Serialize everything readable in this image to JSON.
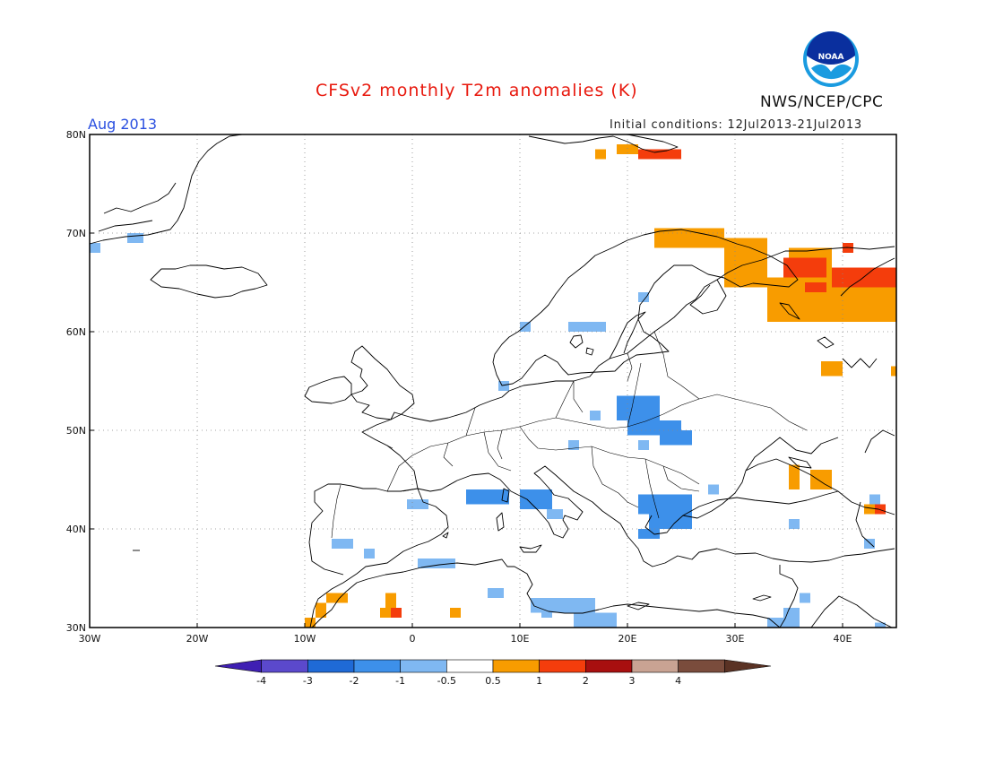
{
  "header": {
    "title": "CFSv2 monthly T2m anomalies (K)",
    "org": "NWS/NCEP/CPC",
    "month": "Aug 2013",
    "initial_conditions": "Initial conditions: 12Jul2013-21Jul2013",
    "logo_text": "NOAA"
  },
  "map": {
    "lon_range": [
      -30,
      45
    ],
    "lat_range": [
      30,
      80
    ],
    "lon_ticks": [
      {
        "lon": -30,
        "label": "30W"
      },
      {
        "lon": -20,
        "label": "20W"
      },
      {
        "lon": -10,
        "label": "10W"
      },
      {
        "lon": 0,
        "label": "0"
      },
      {
        "lon": 10,
        "label": "10E"
      },
      {
        "lon": 20,
        "label": "20E"
      },
      {
        "lon": 30,
        "label": "30E"
      },
      {
        "lon": 40,
        "label": "40E"
      }
    ],
    "lat_ticks": [
      {
        "lat": 30,
        "label": "30N"
      },
      {
        "lat": 40,
        "label": "40N"
      },
      {
        "lat": 50,
        "label": "50N"
      },
      {
        "lat": 60,
        "label": "60N"
      },
      {
        "lat": 70,
        "label": "70N"
      },
      {
        "lat": 80,
        "label": "80N"
      }
    ],
    "grid": "dotted",
    "anomaly_cells": [
      {
        "lon0": 22.5,
        "lon1": 29,
        "lat0": 68.5,
        "lat1": 70.5,
        "value": 0.7
      },
      {
        "lon0": 29,
        "lon1": 33,
        "lat0": 64.5,
        "lat1": 69.5,
        "value": 0.7
      },
      {
        "lon0": 33,
        "lon1": 45,
        "lat0": 61,
        "lat1": 65.5,
        "value": 0.7
      },
      {
        "lon0": 35,
        "lon1": 39,
        "lat0": 65.5,
        "lat1": 68.5,
        "value": 0.7
      },
      {
        "lon0": 34.5,
        "lon1": 38.5,
        "lat0": 65.5,
        "lat1": 67.5,
        "value": 1.5
      },
      {
        "lon0": 39,
        "lon1": 45,
        "lat0": 64.5,
        "lat1": 66.5,
        "value": 1.5
      },
      {
        "lon0": 36.5,
        "lon1": 38.5,
        "lat0": 64,
        "lat1": 65,
        "value": 1.5
      },
      {
        "lon0": 40,
        "lon1": 41,
        "lat0": 68,
        "lat1": 69,
        "value": 1.5
      },
      {
        "lon0": 19,
        "lon1": 21,
        "lat0": 78,
        "lat1": 79,
        "value": 0.7
      },
      {
        "lon0": 21,
        "lon1": 25,
        "lat0": 77.5,
        "lat1": 78.5,
        "value": 1.5
      },
      {
        "lon0": 17,
        "lon1": 18,
        "lat0": 77.5,
        "lat1": 78.5,
        "value": 0.7
      },
      {
        "lon0": 38,
        "lon1": 40,
        "lat0": 55.5,
        "lat1": 57,
        "value": 0.7
      },
      {
        "lon0": 44.5,
        "lon1": 45,
        "lat0": 55.5,
        "lat1": 56.5,
        "value": 0.7
      },
      {
        "lon0": 35,
        "lon1": 36,
        "lat0": 44,
        "lat1": 46.5,
        "value": 0.7
      },
      {
        "lon0": 37,
        "lon1": 39,
        "lat0": 44,
        "lat1": 46,
        "value": 0.7
      },
      {
        "lon0": 42,
        "lon1": 43,
        "lat0": 41.5,
        "lat1": 42.5,
        "value": 0.7
      },
      {
        "lon0": 43,
        "lon1": 44,
        "lat0": 41.5,
        "lat1": 42.5,
        "value": 1.5
      },
      {
        "lon0": -10,
        "lon1": -9,
        "lat0": 30,
        "lat1": 31,
        "value": 0.7
      },
      {
        "lon0": -9,
        "lon1": -8,
        "lat0": 31,
        "lat1": 32.5,
        "value": 0.7
      },
      {
        "lon0": -8,
        "lon1": -6,
        "lat0": 32.5,
        "lat1": 33.5,
        "value": 0.7
      },
      {
        "lon0": -2.5,
        "lon1": -1.5,
        "lat0": 32,
        "lat1": 33.5,
        "value": 0.7
      },
      {
        "lon0": -3,
        "lon1": -2,
        "lat0": 31,
        "lat1": 32,
        "value": 0.7
      },
      {
        "lon0": -2,
        "lon1": -1,
        "lat0": 31,
        "lat1": 32,
        "value": 1.5
      },
      {
        "lon0": 3.5,
        "lon1": 4.5,
        "lat0": 31,
        "lat1": 32,
        "value": 0.7
      },
      {
        "lon0": -30,
        "lon1": -29,
        "lat0": 68,
        "lat1": 69,
        "value": -0.8
      },
      {
        "lon0": -26.5,
        "lon1": -25,
        "lat0": 69,
        "lat1": 70,
        "value": -0.8
      },
      {
        "lon0": 10,
        "lon1": 11,
        "lat0": 60,
        "lat1": 61,
        "value": -0.8
      },
      {
        "lon0": 14.5,
        "lon1": 18,
        "lat0": 60,
        "lat1": 61,
        "value": -0.8
      },
      {
        "lon0": 21,
        "lon1": 22,
        "lat0": 63,
        "lat1": 64,
        "value": -0.8
      },
      {
        "lon0": 8,
        "lon1": 9,
        "lat0": 54,
        "lat1": 55,
        "value": -0.8
      },
      {
        "lon0": 16.5,
        "lon1": 17.5,
        "lat0": 51,
        "lat1": 52,
        "value": -0.8
      },
      {
        "lon0": 19,
        "lon1": 23,
        "lat0": 51,
        "lat1": 53.5,
        "value": -1.2
      },
      {
        "lon0": 20,
        "lon1": 25,
        "lat0": 49.5,
        "lat1": 51,
        "value": -1.2
      },
      {
        "lon0": 23,
        "lon1": 26,
        "lat0": 48.5,
        "lat1": 50,
        "value": -1.2
      },
      {
        "lon0": 14.5,
        "lon1": 15.5,
        "lat0": 48,
        "lat1": 49,
        "value": -0.8
      },
      {
        "lon0": 21,
        "lon1": 22,
        "lat0": 48,
        "lat1": 49,
        "value": -0.8
      },
      {
        "lon0": -0.5,
        "lon1": 1.5,
        "lat0": 42,
        "lat1": 43,
        "value": -0.8
      },
      {
        "lon0": 5,
        "lon1": 9,
        "lat0": 42.5,
        "lat1": 44,
        "value": -1.2
      },
      {
        "lon0": 10,
        "lon1": 13,
        "lat0": 42,
        "lat1": 44,
        "value": -1.2
      },
      {
        "lon0": 12.5,
        "lon1": 14,
        "lat0": 41,
        "lat1": 42,
        "value": -0.8
      },
      {
        "lon0": 21,
        "lon1": 26,
        "lat0": 41.5,
        "lat1": 43.5,
        "value": -1.2
      },
      {
        "lon0": 22,
        "lon1": 26,
        "lat0": 40,
        "lat1": 41.5,
        "value": -1.2
      },
      {
        "lon0": 21,
        "lon1": 23,
        "lat0": 39,
        "lat1": 40,
        "value": -1.2
      },
      {
        "lon0": 27.5,
        "lon1": 28.5,
        "lat0": 43.5,
        "lat1": 44.5,
        "value": -0.8
      },
      {
        "lon0": 35,
        "lon1": 36,
        "lat0": 40,
        "lat1": 41,
        "value": -0.8
      },
      {
        "lon0": 42.5,
        "lon1": 43.5,
        "lat0": 42.5,
        "lat1": 43.5,
        "value": -0.8
      },
      {
        "lon0": 42,
        "lon1": 43,
        "lat0": 38,
        "lat1": 39,
        "value": -0.8
      },
      {
        "lon0": -7.5,
        "lon1": -5.5,
        "lat0": 38,
        "lat1": 39,
        "value": -0.8
      },
      {
        "lon0": -4.5,
        "lon1": -3.5,
        "lat0": 37,
        "lat1": 38,
        "value": -0.8
      },
      {
        "lon0": 0.5,
        "lon1": 4,
        "lat0": 36,
        "lat1": 37,
        "value": -0.8
      },
      {
        "lon0": 7,
        "lon1": 8.5,
        "lat0": 33,
        "lat1": 34,
        "value": -0.8
      },
      {
        "lon0": 11,
        "lon1": 17,
        "lat0": 31.5,
        "lat1": 33,
        "value": -0.8
      },
      {
        "lon0": 12,
        "lon1": 13,
        "lat0": 31,
        "lat1": 32,
        "value": -0.8
      },
      {
        "lon0": 15,
        "lon1": 19,
        "lat0": 30,
        "lat1": 31.5,
        "value": -0.8
      },
      {
        "lon0": 33,
        "lon1": 36,
        "lat0": 30,
        "lat1": 31,
        "value": -0.8
      },
      {
        "lon0": 34.5,
        "lon1": 36,
        "lat0": 31,
        "lat1": 32,
        "value": -0.8
      },
      {
        "lon0": 36,
        "lon1": 37,
        "lat0": 32.5,
        "lat1": 33.5,
        "value": -0.8
      },
      {
        "lon0": 43,
        "lon1": 44,
        "lat0": 30,
        "lat1": 30.5,
        "value": -0.8
      }
    ]
  },
  "legend": {
    "bins": [
      {
        "color": "#3f1fb3"
      },
      {
        "color": "#5b49cc"
      },
      {
        "color": "#1f6ad6"
      },
      {
        "color": "#3d90ea"
      },
      {
        "color": "#7fb8f2"
      },
      {
        "color": "#ffffff"
      },
      {
        "color": "#f89c00"
      },
      {
        "color": "#f43d0c"
      },
      {
        "color": "#a80f0f"
      },
      {
        "color": "#c9a393"
      },
      {
        "color": "#7a4c3c"
      },
      {
        "color": "#5a3224"
      }
    ],
    "tick_labels": [
      "-4",
      "-3",
      "-2",
      "-1",
      "-0.5",
      "0.5",
      "1",
      "2",
      "3",
      "4"
    ]
  },
  "colors": {
    "title": "#e8190e",
    "month": "#2a4fe0",
    "frame": "#000000",
    "coastline": "#000000",
    "grid": "#888888",
    "logo_outer": "#1a9be0",
    "logo_inner": "#0a2f9e"
  }
}
